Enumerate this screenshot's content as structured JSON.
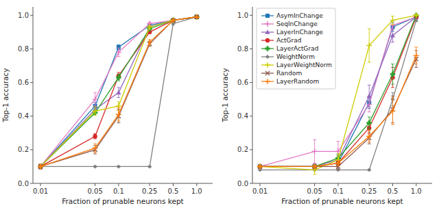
{
  "chart_data": [
    {
      "type": "line",
      "xlabel": "Fraction of prunable neurons kept",
      "ylabel": "Top-1 accuracy",
      "log": "x",
      "grid": false,
      "x": [
        0.01,
        0.05,
        0.1,
        0.25,
        0.5,
        1.0
      ],
      "xlim": [
        0.008,
        1.6
      ],
      "xticks": [
        0.01,
        0.05,
        0.1,
        0.25,
        0.5,
        {
          "value": 1.0,
          "label": "1.0"
        }
      ],
      "ylim": [
        0.0,
        1.05
      ],
      "yticks": [
        {
          "value": 0.0,
          "label": "0.0"
        },
        0.2,
        0.4,
        0.6,
        0.8,
        {
          "value": 1.0,
          "label": "1.0"
        }
      ],
      "series": [
        {
          "color": "#1f77b4",
          "marker": "square",
          "values": [
            0.1,
            0.46,
            0.81,
            0.94,
            0.97,
            0.99
          ],
          "errors": [
            0.005,
            0.02,
            0.015,
            0.008,
            0.004,
            0.001
          ]
        },
        {
          "color": "#e377c2",
          "marker": "plus",
          "values": [
            0.1,
            0.5,
            0.78,
            0.95,
            0.97,
            0.99
          ],
          "errors": [
            0.005,
            0.04,
            0.025,
            0.008,
            0.004,
            0.001
          ]
        },
        {
          "color": "#9467bd",
          "marker": "triangle",
          "values": [
            0.1,
            0.44,
            0.54,
            0.93,
            0.97,
            0.99
          ],
          "errors": [
            0.005,
            0.02,
            0.03,
            0.008,
            0.004,
            0.001
          ]
        },
        {
          "color": "#d62728",
          "marker": "circle",
          "values": [
            0.1,
            0.28,
            0.64,
            0.9,
            0.97,
            0.99
          ],
          "errors": [
            0.015,
            0.015,
            0.02,
            0.008,
            0.004,
            0.001
          ]
        },
        {
          "color": "#2ca02c",
          "marker": "filled-plus",
          "values": [
            0.1,
            0.42,
            0.63,
            0.92,
            0.97,
            0.99
          ],
          "errors": [
            0.005,
            0.015,
            0.02,
            0.008,
            0.004,
            0.001
          ]
        },
        {
          "color": "#7f7f7f",
          "marker": "diamond",
          "values": [
            0.1,
            0.1,
            0.1,
            0.1,
            0.95,
            0.99
          ],
          "errors": [
            0.003,
            0.003,
            0.003,
            0.003,
            0.008,
            0.001
          ]
        },
        {
          "color": "#cccc00",
          "marker": "plus",
          "values": [
            0.1,
            0.43,
            0.46,
            0.93,
            0.97,
            0.99
          ],
          "errors": [
            0.005,
            0.025,
            0.025,
            0.008,
            0.004,
            0.001
          ]
        },
        {
          "color": "#8c564b",
          "marker": "cross",
          "values": [
            0.1,
            0.2,
            0.4,
            0.83,
            0.97,
            0.99
          ],
          "errors": [
            0.005,
            0.025,
            0.04,
            0.015,
            0.004,
            0.001
          ]
        },
        {
          "color": "#ff7f0e",
          "marker": "plus",
          "values": [
            0.1,
            0.21,
            0.41,
            0.84,
            0.97,
            0.99
          ],
          "errors": [
            0.005,
            0.025,
            0.04,
            0.015,
            0.004,
            0.001
          ]
        }
      ]
    },
    {
      "type": "line",
      "xlabel": "Fraction of prunable neurons kept",
      "ylabel": "Top-1 accuracy",
      "log": "x",
      "grid": false,
      "legend": "upper left",
      "x": [
        0.01,
        0.05,
        0.1,
        0.25,
        0.5,
        1.0
      ],
      "xlim": [
        0.008,
        1.6
      ],
      "xticks": [
        0.01,
        0.05,
        0.1,
        0.25,
        0.5,
        {
          "value": 1.0,
          "label": "1.0"
        }
      ],
      "ylim": [
        0.0,
        1.05
      ],
      "yticks": [
        {
          "value": 0.0,
          "label": "0.0"
        },
        0.2,
        0.4,
        0.6,
        0.8,
        {
          "value": 1.0,
          "label": "1.0"
        }
      ],
      "series": [
        {
          "name": "AsymInChange",
          "color": "#1f77b4",
          "marker": "square",
          "values": [
            0.1,
            0.1,
            0.12,
            0.48,
            0.93,
            0.99
          ],
          "errors": [
            0.005,
            0.008,
            0.015,
            0.035,
            0.025,
            0.004
          ]
        },
        {
          "name": "SeqInChange",
          "color": "#e377c2",
          "marker": "plus",
          "values": [
            0.1,
            0.19,
            0.19,
            0.47,
            0.94,
            0.99
          ],
          "errors": [
            0.005,
            0.07,
            0.06,
            0.045,
            0.025,
            0.004
          ]
        },
        {
          "name": "LayerInChange",
          "color": "#9467bd",
          "marker": "triangle",
          "values": [
            0.1,
            0.1,
            0.14,
            0.52,
            0.88,
            0.99
          ],
          "errors": [
            0.005,
            0.015,
            0.025,
            0.065,
            0.04,
            0.004
          ]
        },
        {
          "name": "ActGrad",
          "color": "#d62728",
          "marker": "circle",
          "values": [
            0.1,
            0.1,
            0.12,
            0.33,
            0.63,
            0.99
          ],
          "errors": [
            0.005,
            0.008,
            0.015,
            0.035,
            0.06,
            0.004
          ]
        },
        {
          "name": "LayerActGrad",
          "color": "#2ca02c",
          "marker": "filled-plus",
          "values": [
            0.1,
            0.1,
            0.15,
            0.36,
            0.65,
            1.0
          ],
          "errors": [
            0.005,
            0.008,
            0.025,
            0.035,
            0.06,
            0.004
          ]
        },
        {
          "name": "WeightNorm",
          "color": "#7f7f7f",
          "marker": "diamond",
          "values": [
            0.08,
            0.08,
            0.08,
            0.08,
            0.5,
            0.97
          ],
          "errors": [
            0.003,
            0.003,
            0.003,
            0.003,
            0.04,
            0.008
          ]
        },
        {
          "name": "LayerWeightNorm",
          "color": "#cccc00",
          "marker": "plus",
          "values": [
            0.1,
            0.08,
            0.14,
            0.82,
            0.97,
            1.0
          ],
          "errors": [
            0.005,
            0.025,
            0.035,
            0.1,
            0.025,
            0.004
          ]
        },
        {
          "name": "Random",
          "color": "#8c564b",
          "marker": "cross",
          "values": [
            0.1,
            0.1,
            0.1,
            0.27,
            0.44,
            0.74
          ],
          "errors": [
            0.005,
            0.008,
            0.015,
            0.035,
            0.08,
            0.05
          ]
        },
        {
          "name": "LayerRandom",
          "color": "#ff7f0e",
          "marker": "plus",
          "values": [
            0.1,
            0.1,
            0.12,
            0.28,
            0.43,
            0.76
          ],
          "errors": [
            0.005,
            0.008,
            0.015,
            0.035,
            0.08,
            0.05
          ]
        }
      ]
    }
  ]
}
